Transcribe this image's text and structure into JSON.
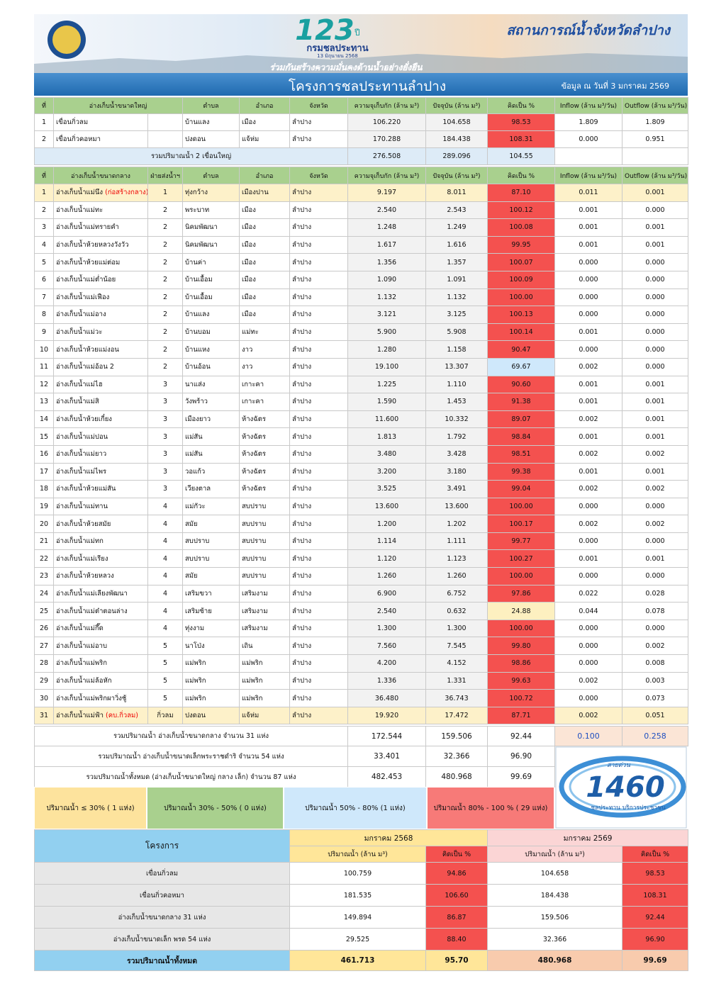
{
  "header": {
    "logo_number": "123",
    "logo_suffix": "ปี",
    "agency_name": "กรมชลประทาน",
    "anniversary": "13 มิถุนายน 2568",
    "title": "สถานการณ์น้ำจังหวัดลำปาง",
    "slogan": "ร่วมกันสร้างความมั่นคงด้านน้ำอย่างยั่งยืน",
    "project": "โครงการชลประทานลำปาง",
    "date": "ข้อมูล ณ วันที่ 3 มกราคม 2569"
  },
  "large_table": {
    "columns": [
      "ที่",
      "อ่างเก็บน้ำขนาดใหญ่",
      "ตำบล",
      "อำเภอ",
      "จังหวัด",
      "ความจุเก็บกัก (ล้าน ม³)",
      "ปัจจุบัน (ล้าน ม³)",
      "คิดเป็น %",
      "Inflow (ล้าน ม³/วัน)",
      "Outflow (ล้าน ม³/วัน)"
    ],
    "rows": [
      {
        "cells": [
          "1",
          "เขื่อนกิ่วลม",
          "บ้านแลง",
          "เมือง",
          "ลำปาง",
          "106.220",
          "104.658",
          "98.53",
          "1.809",
          "1.809"
        ],
        "pct_color": "#f4514f"
      },
      {
        "cells": [
          "2",
          "เขื่อนกิ่วคอหมา",
          "ปงดอน",
          "แจ้ห่ม",
          "ลำปาง",
          "170.288",
          "184.438",
          "108.31",
          "0.000",
          "0.951"
        ],
        "pct_color": "#f4514f"
      }
    ],
    "total": {
      "label": "รวมปริมาณน้ำ 2 เขื่อนใหญ่",
      "cells": [
        "276.508",
        "289.096",
        "104.55"
      ]
    }
  },
  "medium_table": {
    "columns": [
      "ที่",
      "อ่างเก็บน้ำขนาดกลาง",
      "ฝ่ายส่งน้ำฯ",
      "ตำบล",
      "อำเภอ",
      "จังหวัด",
      "ความจุเก็บกัก (ล้าน ม³)",
      "ปัจจุบัน (ล้าน ม³)",
      "คิดเป็น %",
      "Inflow (ล้าน ม³/วัน)",
      "Outflow (ล้าน ม³/วัน)"
    ],
    "rows": [
      {
        "cells": [
          "1",
          "อ่างเก็บน้ำแม่นึง",
          "1",
          "ทุ่งกว้าง",
          "เมืองปาน",
          "ลำปาง",
          "9.197",
          "8.011",
          "87.10",
          "0.011",
          "0.001"
        ],
        "note": "(ก่อสร้างกลาง)",
        "highlight": "#fdf1c9",
        "pct_color": "#f4514f"
      },
      {
        "cells": [
          "2",
          "อ่างเก็บน้ำแม่ทะ",
          "2",
          "พระบาท",
          "เมือง",
          "ลำปาง",
          "2.540",
          "2.543",
          "100.12",
          "0.001",
          "0.000"
        ],
        "pct_color": "#f4514f"
      },
      {
        "cells": [
          "3",
          "อ่างเก็บน้ำแม่ทรายคำ",
          "2",
          "นิคมพัฒนา",
          "เมือง",
          "ลำปาง",
          "1.248",
          "1.249",
          "100.08",
          "0.001",
          "0.001"
        ],
        "pct_color": "#f4514f"
      },
      {
        "cells": [
          "4",
          "อ่างเก็บน้ำห้วยหลวงวังวัว",
          "2",
          "นิคมพัฒนา",
          "เมือง",
          "ลำปาง",
          "1.617",
          "1.616",
          "99.95",
          "0.001",
          "0.001"
        ],
        "pct_color": "#f4514f"
      },
      {
        "cells": [
          "5",
          "อ่างเก็บน้ำห้วยแม่ต่อม",
          "2",
          "บ้านค่า",
          "เมือง",
          "ลำปาง",
          "1.356",
          "1.357",
          "100.07",
          "0.000",
          "0.000"
        ],
        "pct_color": "#f4514f"
      },
      {
        "cells": [
          "6",
          "อ่างเก็บน้ำแม่ต่ำน้อย",
          "2",
          "บ้านเอื้อม",
          "เมือง",
          "ลำปาง",
          "1.090",
          "1.091",
          "100.09",
          "0.000",
          "0.000"
        ],
        "pct_color": "#f4514f"
      },
      {
        "cells": [
          "7",
          "อ่างเก็บน้ำแม่เฟือง",
          "2",
          "บ้านเอื้อม",
          "เมือง",
          "ลำปาง",
          "1.132",
          "1.132",
          "100.00",
          "0.000",
          "0.000"
        ],
        "pct_color": "#f4514f"
      },
      {
        "cells": [
          "8",
          "อ่างเก็บน้ำแม่อาง",
          "2",
          "บ้านแลง",
          "เมือง",
          "ลำปาง",
          "3.121",
          "3.125",
          "100.13",
          "0.000",
          "0.000"
        ],
        "pct_color": "#f4514f"
      },
      {
        "cells": [
          "9",
          "อ่างเก็บน้ำแม่วะ",
          "2",
          "บ้านบอม",
          "แม่ทะ",
          "ลำปาง",
          "5.900",
          "5.908",
          "100.14",
          "0.001",
          "0.000"
        ],
        "pct_color": "#f4514f"
      },
      {
        "cells": [
          "10",
          "อ่างเก็บน้ำห้วยแม่งอน",
          "2",
          "บ้านแหง",
          "งาว",
          "ลำปาง",
          "1.280",
          "1.158",
          "90.47",
          "0.000",
          "0.000"
        ],
        "pct_color": "#f4514f"
      },
      {
        "cells": [
          "11",
          "อ่างเก็บน้ำแม่อ้อน 2",
          "2",
          "บ้านอ้อน",
          "งาว",
          "ลำปาง",
          "19.100",
          "13.307",
          "69.67",
          "0.002",
          "0.000"
        ],
        "pct_color": "#cfe8fb"
      },
      {
        "cells": [
          "12",
          "อ่างเก็บน้ำแม่ไฮ",
          "3",
          "นาแส่ง",
          "เกาะคา",
          "ลำปาง",
          "1.225",
          "1.110",
          "90.60",
          "0.001",
          "0.001"
        ],
        "pct_color": "#f4514f"
      },
      {
        "cells": [
          "13",
          "อ่างเก็บน้ำแม่สิ",
          "3",
          "วังพร้าว",
          "เกาะคา",
          "ลำปาง",
          "1.590",
          "1.453",
          "91.38",
          "0.001",
          "0.001"
        ],
        "pct_color": "#f4514f"
      },
      {
        "cells": [
          "14",
          "อ่างเก็บน้ำห้วยเกี๋ยง",
          "3",
          "เมืองยาว",
          "ห้างฉัตร",
          "ลำปาง",
          "11.600",
          "10.332",
          "89.07",
          "0.002",
          "0.001"
        ],
        "pct_color": "#f4514f"
      },
      {
        "cells": [
          "15",
          "อ่างเก็บน้ำแม่ปอน",
          "3",
          "แม่สัน",
          "ห้างฉัตร",
          "ลำปาง",
          "1.813",
          "1.792",
          "98.84",
          "0.001",
          "0.001"
        ],
        "pct_color": "#f4514f"
      },
      {
        "cells": [
          "16",
          "อ่างเก็บน้ำแม่ยาว",
          "3",
          "แม่สัน",
          "ห้างฉัตร",
          "ลำปาง",
          "3.480",
          "3.428",
          "98.51",
          "0.002",
          "0.002"
        ],
        "pct_color": "#f4514f"
      },
      {
        "cells": [
          "17",
          "อ่างเก็บน้ำแม่ไพร",
          "3",
          "วอแก้ว",
          "ห้างฉัตร",
          "ลำปาง",
          "3.200",
          "3.180",
          "99.38",
          "0.001",
          "0.001"
        ],
        "pct_color": "#f4514f"
      },
      {
        "cells": [
          "18",
          "อ่างเก็บน้ำห้วยแม่สัน",
          "3",
          "เวียงตาล",
          "ห้างฉัตร",
          "ลำปาง",
          "3.525",
          "3.491",
          "99.04",
          "0.002",
          "0.002"
        ],
        "pct_color": "#f4514f"
      },
      {
        "cells": [
          "19",
          "อ่างเก็บน้ำแม่ทาน",
          "4",
          "แม่กัวะ",
          "สบปราบ",
          "ลำปาง",
          "13.600",
          "13.600",
          "100.00",
          "0.000",
          "0.000"
        ],
        "pct_color": "#f4514f"
      },
      {
        "cells": [
          "20",
          "อ่างเก็บน้ำห้วยสมัย",
          "4",
          "สมัย",
          "สบปราบ",
          "ลำปาง",
          "1.200",
          "1.202",
          "100.17",
          "0.002",
          "0.002"
        ],
        "pct_color": "#f4514f"
      },
      {
        "cells": [
          "21",
          "อ่างเก็บน้ำแม่ทก",
          "4",
          "สบปราบ",
          "สบปราบ",
          "ลำปาง",
          "1.114",
          "1.111",
          "99.77",
          "0.000",
          "0.000"
        ],
        "pct_color": "#f4514f"
      },
      {
        "cells": [
          "22",
          "อ่างเก็บน้ำแม่เรียง",
          "4",
          "สบปราบ",
          "สบปราบ",
          "ลำปาง",
          "1.120",
          "1.123",
          "100.27",
          "0.001",
          "0.001"
        ],
        "pct_color": "#f4514f"
      },
      {
        "cells": [
          "23",
          "อ่างเก็บน้ำห้วยหลวง",
          "4",
          "สมัย",
          "สบปราบ",
          "ลำปาง",
          "1.260",
          "1.260",
          "100.00",
          "0.000",
          "0.000"
        ],
        "pct_color": "#f4514f"
      },
      {
        "cells": [
          "24",
          "อ่างเก็บน้ำแม่เลียงพัฒนา",
          "4",
          "เสริมขวา",
          "เสริมงาม",
          "ลำปาง",
          "6.900",
          "6.752",
          "97.86",
          "0.022",
          "0.028"
        ],
        "pct_color": "#f4514f"
      },
      {
        "cells": [
          "25",
          "อ่างเก็บน้ำแม่ต๋าตอนล่าง",
          "4",
          "เสริมซ้าย",
          "เสริมงาม",
          "ลำปาง",
          "2.540",
          "0.632",
          "24.88",
          "0.044",
          "0.078"
        ],
        "pct_color": "#fdf0c0"
      },
      {
        "cells": [
          "26",
          "อ่างเก็บน้ำแม่กึ๊ด",
          "4",
          "ทุ่งงาม",
          "เสริมงาม",
          "ลำปาง",
          "1.300",
          "1.300",
          "100.00",
          "0.000",
          "0.000"
        ],
        "pct_color": "#f4514f"
      },
      {
        "cells": [
          "27",
          "อ่างเก็บน้ำแม่อาบ",
          "5",
          "นาโป่ง",
          "เถิน",
          "ลำปาง",
          "7.560",
          "7.545",
          "99.80",
          "0.000",
          "0.002"
        ],
        "pct_color": "#f4514f"
      },
      {
        "cells": [
          "28",
          "อ่างเก็บน้ำแม่พริก",
          "5",
          "แม่พริก",
          "แม่พริก",
          "ลำปาง",
          "4.200",
          "4.152",
          "98.86",
          "0.000",
          "0.008"
        ],
        "pct_color": "#f4514f"
      },
      {
        "cells": [
          "29",
          "อ่างเก็บน้ำแม่ล้อหัก",
          "5",
          "แม่พริก",
          "แม่พริก",
          "ลำปาง",
          "1.336",
          "1.331",
          "99.63",
          "0.002",
          "0.003"
        ],
        "pct_color": "#f4514f"
      },
      {
        "cells": [
          "30",
          "อ่างเก็บน้ำแม่พริกผาวิ่งชู้",
          "5",
          "แม่พริก",
          "แม่พริก",
          "ลำปาง",
          "36.480",
          "36.743",
          "100.72",
          "0.000",
          "0.073"
        ],
        "pct_color": "#f4514f"
      },
      {
        "cells": [
          "31",
          "อ่างเก็บน้ำแม่ฟ้า",
          "กิ่วลม",
          "ปงดอน",
          "แจ้ห่ม",
          "ลำปาง",
          "19.920",
          "17.472",
          "87.71",
          "0.002",
          "0.051"
        ],
        "note": "(คบ.กิ่วลม)",
        "highlight": "#fdf1c9",
        "pct_color": "#f4514f"
      }
    ]
  },
  "summary": [
    {
      "label": "รวมปริมาณน้ำ อ่างเก็บน้ำขนาดกลาง จำนวน 31 แห่ง",
      "cells": [
        "172.544",
        "159.506",
        "92.44",
        "0.100",
        "0.258"
      ]
    },
    {
      "label": "รวมปริมาณน้ำ อ่างเก็บน้ำขนาดเล็กพระราชดำริ  จำนวน 54  แห่ง",
      "cells": [
        "33.401",
        "32.366",
        "96.90"
      ]
    },
    {
      "label": "รวมปริมาณน้ำทั้งหมด (อ่างเก็บน้ำขนาดใหญ่ กลาง เล็ก) จำนวน 87 แห่ง",
      "cells": [
        "482.453",
        "480.968",
        "99.69"
      ]
    }
  ],
  "hotline": {
    "caption": "สายด่วน",
    "number": "1460",
    "tagline": "ชลประทาน บริการประชาชน"
  },
  "legend": [
    {
      "label": "ปริมาณน้ำ ≤ 30% ( 1 แห่ง)",
      "color": "#fde39d"
    },
    {
      "label": "ปริมาณน้ำ 30% - 50%  ( 0 แห่ง)",
      "color": "#a9d08e"
    },
    {
      "label": "ปริมาณน้ำ 50% - 80%  (1 แห่ง)",
      "color": "#cfe8fb"
    },
    {
      "label": "ปริมาณน้ำ 80% - 100 % ( 29 แห่ง)",
      "color": "#f77a78"
    }
  ],
  "comparison": {
    "project_header": "โครงการ",
    "periods": [
      "มกราคม 2568",
      "มกราคม 2569"
    ],
    "subheaders": [
      "ปริมาณน้ำ (ล้าน ม³)",
      "คิดเป็น %",
      "ปริมาณน้ำ (ล้าน ม³)",
      "คิดเป็น %"
    ],
    "rows": [
      [
        "เขื่อนกิ่วลม",
        "100.759",
        "94.86",
        "104.658",
        "98.53"
      ],
      [
        "เขื่อนกิ่วคอหมา",
        "181.535",
        "106.60",
        "184.438",
        "108.31"
      ],
      [
        "อ่างเก็บน้ำขนาดกลาง  31  แห่ง",
        "149.894",
        "86.87",
        "159.506",
        "92.44"
      ],
      [
        "อ่างเก็บน้ำขนาดเล็ก พรด 54 แห่ง",
        "29.525",
        "88.40",
        "32.366",
        "96.90"
      ]
    ],
    "total": [
      "รวมปริมาณน้ำทั้งหมด",
      "461.713",
      "95.70",
      "480.968",
      "99.69"
    ]
  }
}
